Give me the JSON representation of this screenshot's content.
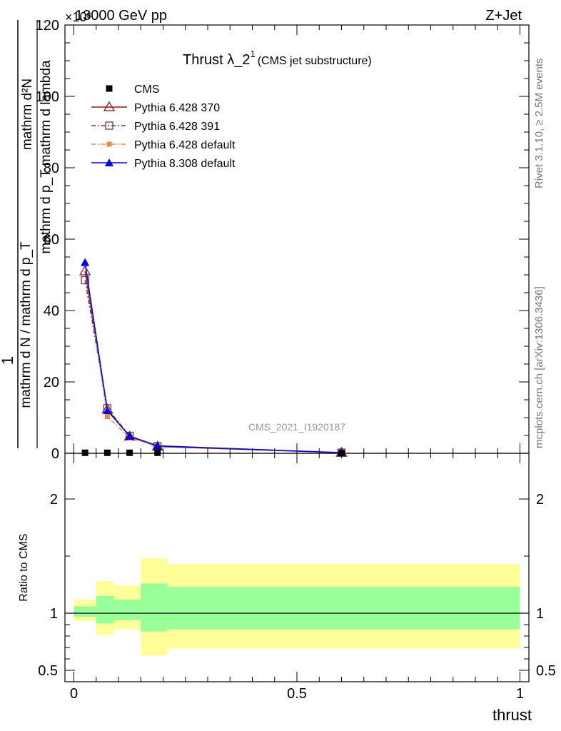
{
  "header": {
    "left": "13000 GeV pp",
    "right": "Z+Jet",
    "exponent": "×10³"
  },
  "title": {
    "main": "Thrust λ_2",
    "superscript": "1",
    "suffix": "(CMS jet substructure)"
  },
  "analysis_label": "CMS_2021_I1920187",
  "side_text": {
    "rivet": "Rivet 3.1.10, ≥ 2.5M events",
    "mcplots": "mcplots.cern.ch [arXiv:1306.3436]"
  },
  "colors": {
    "cms": "#000000",
    "p370": "#8b1a1a",
    "p391": "#6b3a3a",
    "p6def": "#f4844c",
    "p8def": "#0000dd",
    "band_outer": "#ffff99",
    "band_inner": "#99ff99"
  },
  "chart_data": [
    {
      "type": "line",
      "ylabel": {
        "numerator": "mathrm d²N",
        "denominator": "mathrm d p_T mathrm d lambda",
        "prefactor": "1",
        "norm": "mathrm d N / mathrm d p_T"
      },
      "ylim": [
        0,
        120000
      ],
      "xlim": [
        -0.02,
        1.02
      ],
      "y_ticks": [
        0,
        20,
        40,
        60,
        80,
        100,
        120
      ],
      "y_ticks_scale": 1000,
      "legend_position": "upper-left",
      "series": [
        {
          "name": "CMS",
          "x": [
            0.025,
            0.075,
            0.125,
            0.1875,
            0.6
          ],
          "y": [
            150,
            150,
            150,
            150,
            50
          ]
        },
        {
          "name": "Pythia 6.428 370",
          "x": [
            0.025,
            0.075,
            0.125,
            0.1875,
            0.6
          ],
          "y": [
            51000,
            12300,
            4700,
            1900,
            180
          ]
        },
        {
          "name": "Pythia 6.428 391",
          "x": [
            0.025,
            0.075,
            0.125,
            0.1875,
            0.6
          ],
          "y": [
            48500,
            12600,
            4900,
            2000,
            190
          ]
        },
        {
          "name": "Pythia 6.428 default",
          "x": [
            0.025,
            0.075,
            0.125,
            0.1875,
            0.6
          ],
          "y": [
            53000,
            10300,
            4300,
            2100,
            200
          ]
        },
        {
          "name": "Pythia 8.308 default",
          "x": [
            0.025,
            0.075,
            0.125,
            0.1875,
            0.6
          ],
          "y": [
            53500,
            12000,
            4800,
            2100,
            180
          ]
        }
      ]
    },
    {
      "type": "area",
      "ylabel": "Ratio to CMS",
      "xlabel": "thrust",
      "ylim": [
        0.4,
        2.4
      ],
      "x_ticks": [
        0,
        0.5,
        1
      ],
      "y_ticks": [
        0.5,
        1,
        2
      ],
      "bins": [
        {
          "lo": 0.0,
          "hi": 0.05,
          "outer": [
            0.93,
            1.12
          ],
          "inner": [
            0.97,
            1.06
          ]
        },
        {
          "lo": 0.05,
          "hi": 0.09,
          "outer": [
            0.81,
            1.28
          ],
          "inner": [
            0.91,
            1.15
          ]
        },
        {
          "lo": 0.09,
          "hi": 0.15,
          "outer": [
            0.86,
            1.24
          ],
          "inner": [
            0.94,
            1.12
          ]
        },
        {
          "lo": 0.15,
          "hi": 0.21,
          "outer": [
            0.63,
            1.48
          ],
          "inner": [
            0.84,
            1.26
          ]
        },
        {
          "lo": 0.21,
          "hi": 1.0,
          "outer": [
            0.69,
            1.43
          ],
          "inner": [
            0.86,
            1.23
          ]
        }
      ]
    }
  ]
}
